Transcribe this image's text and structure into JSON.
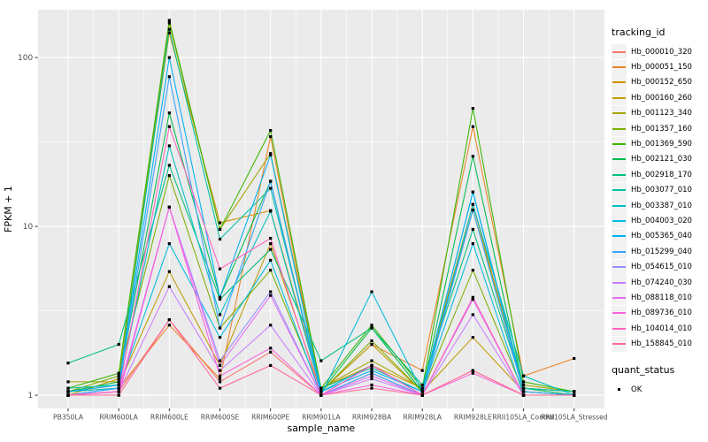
{
  "chart_data": {
    "type": "line",
    "title": "",
    "xlabel": "sample_name",
    "ylabel": "FPKM + 1",
    "y_scale": "log10",
    "ylim": [
      0.835,
      192
    ],
    "y_major_ticks": [
      1,
      10,
      100
    ],
    "y_tick_labels": [
      "1",
      "10",
      "100"
    ],
    "y_minor_ticks": [
      3.162,
      31.62
    ],
    "grid": true,
    "legend_position": "right",
    "x_categories": [
      "PB350LA",
      "RRIM600LA",
      "RRIM600LE",
      "RRIM600SE",
      "RRIM600PE",
      "RRIM901LA",
      "RRIM928BA",
      "RRIM928LA",
      "RRIM928LE",
      "RRII105LA_Control",
      "RRII105LA_Stressed"
    ],
    "legend": {
      "tracking_title": "tracking_id",
      "quant_title": "quant_status",
      "quant_items": [
        "OK"
      ]
    },
    "colors": {
      "panel_bg": "#EBEBEB",
      "grid": "#FFFFFF",
      "tick_text": "#4D4D4D",
      "axis_tick": "#333333",
      "point": "#000000",
      "legend_key_bg": "#F2F2F2"
    },
    "series": [
      {
        "name": "Hb_000010_320",
        "color": "#F8766D",
        "values": [
          1.0,
          1.05,
          2.8,
          1.2,
          1.8,
          1.0,
          1.35,
          1.0,
          1.4,
          1.0,
          1.0
        ]
      },
      {
        "name": "Hb_000051_150",
        "color": "#E88526",
        "values": [
          1.05,
          1.1,
          2.6,
          1.25,
          34,
          1.05,
          2.0,
          1.4,
          39,
          1.3,
          1.65
        ]
      },
      {
        "name": "Hb_000152_650",
        "color": "#D39200",
        "values": [
          1.0,
          1.25,
          140,
          10.5,
          12.4,
          1.1,
          1.5,
          1.1,
          13.5,
          1.1,
          1.05
        ]
      },
      {
        "name": "Hb_000160_260",
        "color": "#C09B00",
        "values": [
          1.05,
          1.15,
          5.4,
          1.5,
          7.9,
          1.05,
          2.0,
          1.05,
          2.2,
          1.05,
          1.0
        ]
      },
      {
        "name": "Hb_001123_340",
        "color": "#A3A500",
        "values": [
          1.2,
          1.2,
          160,
          9.6,
          27,
          1.1,
          1.6,
          1.1,
          12.5,
          1.15,
          1.05
        ]
      },
      {
        "name": "Hb_001357_160",
        "color": "#7CAE00",
        "values": [
          1.05,
          1.3,
          20,
          2.5,
          5.5,
          1.05,
          2.1,
          1.05,
          5.5,
          1.05,
          1.0
        ]
      },
      {
        "name": "Hb_001369_590",
        "color": "#39B600",
        "values": [
          1.1,
          1.35,
          166,
          9.6,
          37,
          1.1,
          2.6,
          1.1,
          50,
          1.2,
          1.05
        ]
      },
      {
        "name": "Hb_002121_030",
        "color": "#00BB4E",
        "values": [
          1.05,
          1.2,
          47,
          3.8,
          18.5,
          1.05,
          2.5,
          1.05,
          26,
          1.1,
          1.0
        ]
      },
      {
        "name": "Hb_002918_170",
        "color": "#00BF7D",
        "values": [
          1.55,
          2.0,
          23,
          3.7,
          7.3,
          1.6,
          2.5,
          1.15,
          9.6,
          1.1,
          1.05
        ]
      },
      {
        "name": "Hb_003077_010",
        "color": "#00C1A3",
        "values": [
          1.1,
          1.15,
          147,
          8.4,
          16.8,
          1.1,
          1.45,
          1.05,
          16,
          1.1,
          1.05
        ]
      },
      {
        "name": "Hb_003387_010",
        "color": "#00BFC4",
        "values": [
          1.05,
          1.1,
          30,
          3.0,
          12.3,
          1.05,
          1.5,
          1.0,
          13.5,
          1.3,
          1.0
        ]
      },
      {
        "name": "Hb_004003_020",
        "color": "#00BAE0",
        "values": [
          1.0,
          1.1,
          7.9,
          2.2,
          6.3,
          1.0,
          4.1,
          1.05,
          7.9,
          1.0,
          1.0
        ]
      },
      {
        "name": "Hb_005365_040",
        "color": "#00B0F6",
        "values": [
          1.05,
          1.15,
          100,
          3.8,
          26.5,
          1.05,
          1.4,
          1.05,
          16,
          1.05,
          1.0
        ]
      },
      {
        "name": "Hb_015299_040",
        "color": "#35A2FF",
        "values": [
          1.0,
          1.1,
          77,
          2.5,
          18.5,
          1.0,
          1.35,
          1.0,
          12.5,
          1.05,
          1.0
        ]
      },
      {
        "name": "Hb_054615_010",
        "color": "#9590FF",
        "values": [
          1.0,
          1.05,
          13,
          1.6,
          4.1,
          1.0,
          1.5,
          1.0,
          3.7,
          1.0,
          1.0
        ]
      },
      {
        "name": "Hb_074240_030",
        "color": "#C77CFF",
        "values": [
          1.0,
          1.05,
          4.4,
          1.4,
          2.6,
          1.0,
          1.25,
          1.0,
          3.0,
          1.0,
          1.0
        ]
      },
      {
        "name": "Hb_088118_010",
        "color": "#E76BF3",
        "values": [
          1.0,
          1.05,
          13,
          1.5,
          3.9,
          1.0,
          1.3,
          1.0,
          3.7,
          1.0,
          1.0
        ]
      },
      {
        "name": "Hb_089736_010",
        "color": "#FA62DB",
        "values": [
          1.0,
          1.0,
          13,
          1.3,
          1.9,
          1.0,
          1.15,
          1.0,
          1.35,
          1.0,
          1.0
        ]
      },
      {
        "name": "Hb_104014_010",
        "color": "#FF62BC",
        "values": [
          1.0,
          1.05,
          39,
          5.6,
          8.5,
          1.0,
          1.5,
          1.0,
          3.8,
          1.0,
          1.0
        ]
      },
      {
        "name": "Hb_158845_010",
        "color": "#FF6A98",
        "values": [
          1.0,
          1.0,
          2.8,
          1.1,
          1.5,
          1.0,
          1.1,
          1.0,
          1.4,
          1.0,
          1.0
        ]
      }
    ]
  }
}
